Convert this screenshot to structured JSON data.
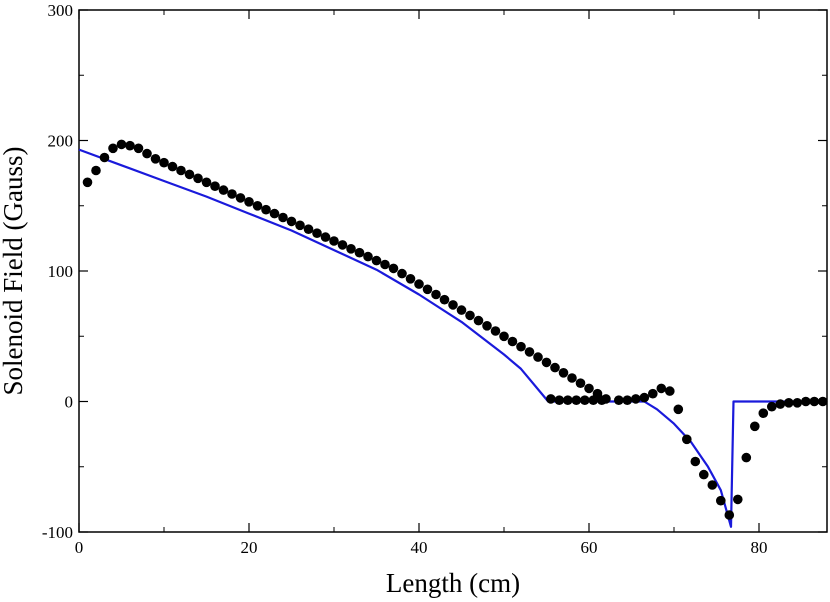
{
  "chart_data": {
    "type": "scatter",
    "xlabel": "Length (cm)",
    "ylabel": "Solenoid Field (Gauss)",
    "xlim": [
      0,
      88
    ],
    "ylim": [
      -100,
      300
    ],
    "grid": false,
    "x_ticks": [
      0,
      20,
      40,
      60,
      80
    ],
    "y_ticks": [
      -100,
      0,
      100,
      200,
      300
    ],
    "x_tick_labels": [
      "0",
      "20",
      "40",
      "60",
      "80"
    ],
    "y_tick_labels": [
      "-100",
      "0",
      "100",
      "200",
      "300"
    ],
    "series": [
      {
        "kind": "points",
        "color": "#000000",
        "marker": "circle",
        "points": [
          [
            1,
            168
          ],
          [
            2,
            177
          ],
          [
            3,
            187
          ],
          [
            4,
            194
          ],
          [
            5,
            197
          ],
          [
            6,
            196
          ],
          [
            7,
            194
          ],
          [
            8,
            190
          ],
          [
            9,
            186
          ],
          [
            10,
            183
          ],
          [
            11,
            180
          ],
          [
            12,
            177
          ],
          [
            13,
            174
          ],
          [
            14,
            171
          ],
          [
            15,
            168
          ],
          [
            16,
            165
          ],
          [
            17,
            162
          ],
          [
            18,
            159
          ],
          [
            19,
            156
          ],
          [
            20,
            153
          ],
          [
            21,
            150
          ],
          [
            22,
            147
          ],
          [
            23,
            144
          ],
          [
            24,
            141
          ],
          [
            25,
            138
          ],
          [
            26,
            135
          ],
          [
            27,
            132
          ],
          [
            28,
            129
          ],
          [
            29,
            126
          ],
          [
            30,
            123
          ],
          [
            31,
            120
          ],
          [
            32,
            117
          ],
          [
            33,
            114
          ],
          [
            34,
            111
          ],
          [
            35,
            108
          ],
          [
            36,
            105
          ],
          [
            37,
            102
          ],
          [
            38,
            98
          ],
          [
            39,
            94
          ],
          [
            40,
            90
          ],
          [
            41,
            86
          ],
          [
            42,
            82
          ],
          [
            43,
            78
          ],
          [
            44,
            74
          ],
          [
            45,
            70
          ],
          [
            46,
            66
          ],
          [
            47,
            62
          ],
          [
            48,
            58
          ],
          [
            49,
            54
          ],
          [
            50,
            50
          ],
          [
            51,
            46
          ],
          [
            52,
            42
          ],
          [
            53,
            38
          ],
          [
            54,
            34
          ],
          [
            55,
            30
          ],
          [
            56,
            26
          ],
          [
            57,
            22
          ],
          [
            58,
            18
          ],
          [
            59,
            14
          ],
          [
            60,
            10
          ],
          [
            61,
            6
          ],
          [
            62,
            2
          ],
          [
            55.5,
            2
          ],
          [
            56.5,
            1
          ],
          [
            57.5,
            1
          ],
          [
            58.5,
            1
          ],
          [
            59.5,
            1
          ],
          [
            60.5,
            1
          ],
          [
            61.5,
            1
          ],
          [
            63.5,
            1
          ],
          [
            64.5,
            1
          ],
          [
            65.5,
            2
          ],
          [
            66.5,
            3
          ],
          [
            67.5,
            6
          ],
          [
            68.5,
            10
          ],
          [
            69.5,
            8
          ],
          [
            70.5,
            -6
          ],
          [
            71.5,
            -29
          ],
          [
            72.5,
            -46
          ],
          [
            73.5,
            -56
          ],
          [
            74.5,
            -64
          ],
          [
            75.5,
            -76
          ],
          [
            76.5,
            -87
          ],
          [
            77.5,
            -75
          ],
          [
            78.5,
            -43
          ],
          [
            79.5,
            -19
          ],
          [
            80.5,
            -9
          ],
          [
            81.5,
            -4
          ],
          [
            82.5,
            -2
          ],
          [
            83.5,
            -1
          ],
          [
            84.5,
            -1
          ],
          [
            85.5,
            0
          ],
          [
            86.5,
            0
          ],
          [
            87.5,
            0
          ]
        ]
      },
      {
        "kind": "line",
        "color": "#1a1adb",
        "points": [
          [
            0,
            193
          ],
          [
            5,
            181
          ],
          [
            10,
            169
          ],
          [
            15,
            157
          ],
          [
            20,
            144
          ],
          [
            25,
            131
          ],
          [
            30,
            116
          ],
          [
            35,
            101
          ],
          [
            40,
            82
          ],
          [
            45,
            61
          ],
          [
            50,
            36
          ],
          [
            52,
            25
          ],
          [
            55.2,
            0
          ],
          [
            66.5,
            0
          ],
          [
            68,
            -6
          ],
          [
            70,
            -17
          ],
          [
            72,
            -31
          ],
          [
            74,
            -50
          ],
          [
            75.5,
            -68
          ],
          [
            76.7,
            -96
          ],
          [
            77,
            0
          ],
          [
            88,
            0
          ]
        ]
      }
    ]
  }
}
